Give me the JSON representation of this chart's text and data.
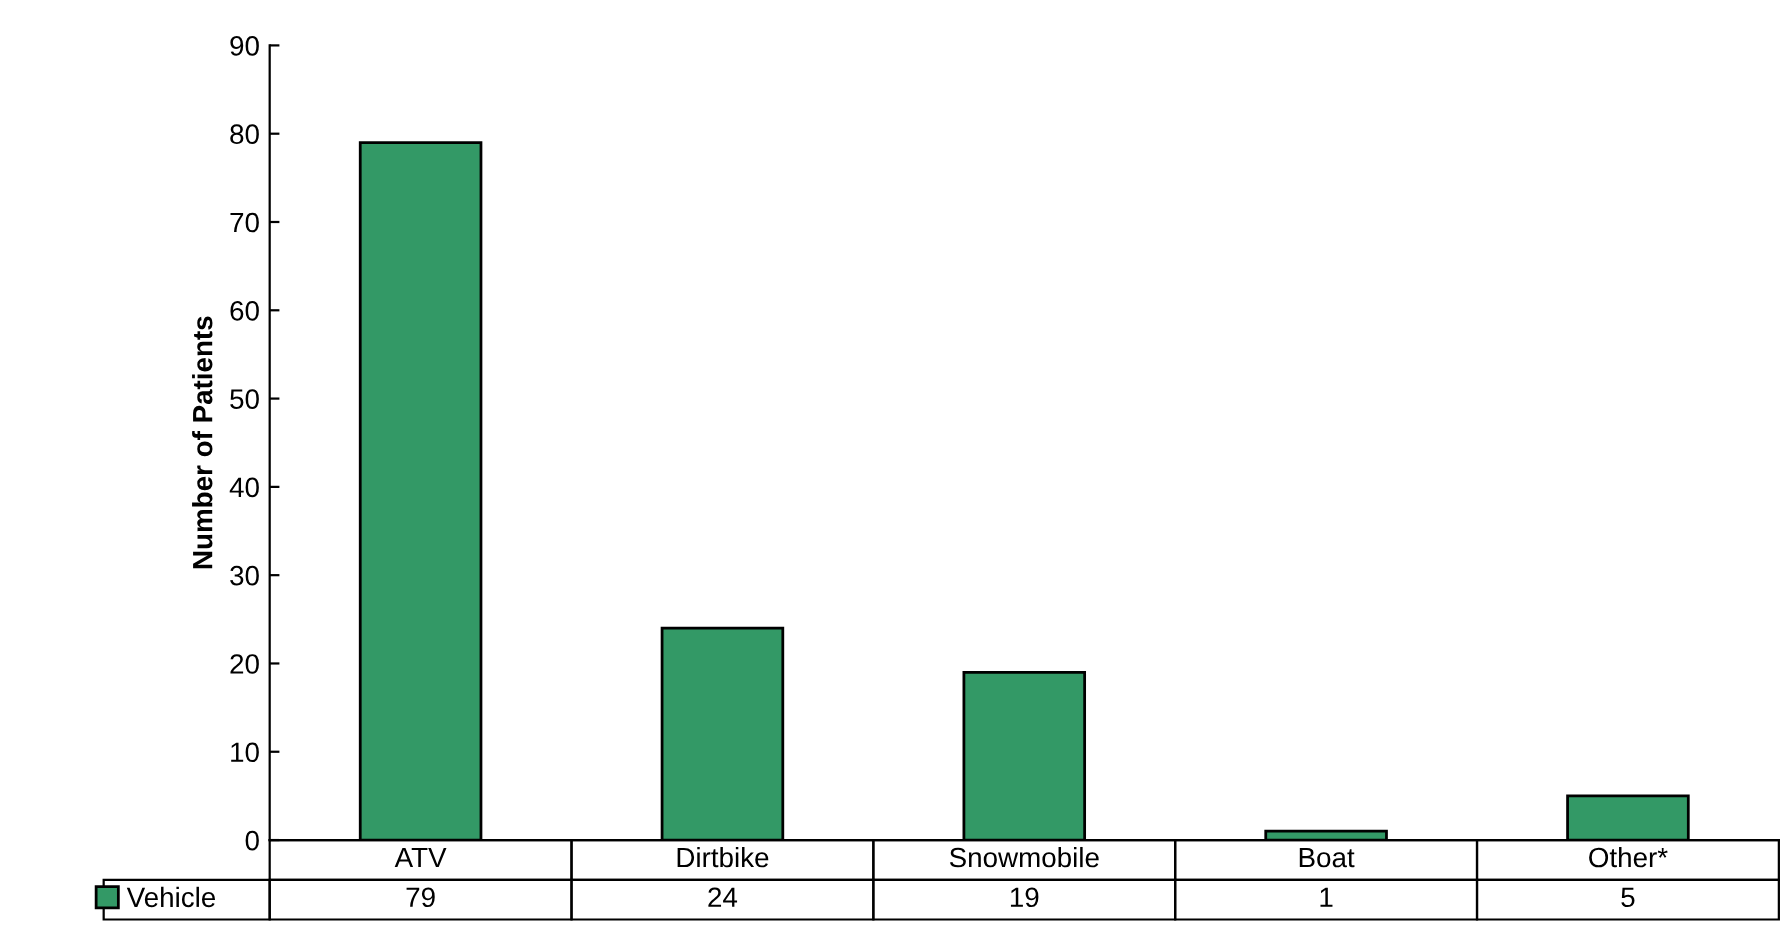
{
  "chart_data": {
    "type": "bar",
    "ylabel": "Number of Patients",
    "categories": [
      "ATV",
      "Dirtbike",
      "Snowmobile",
      "Boat",
      "Other*"
    ],
    "series": [
      {
        "name": "Vehicle",
        "color": "#339966",
        "values": [
          79,
          24,
          19,
          1,
          5
        ]
      }
    ],
    "ylim": [
      0,
      90
    ],
    "yticks": [
      0,
      10,
      20,
      30,
      40,
      50,
      60,
      70,
      80,
      90
    ],
    "grid": false,
    "legend": "bottom",
    "data_labels": true
  }
}
